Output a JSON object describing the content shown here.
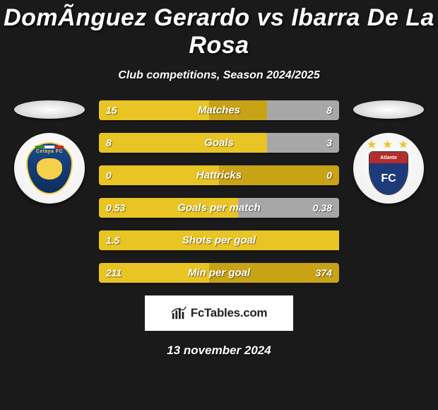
{
  "title": "DomÃ­nguez Gerardo vs Ibarra De La Rosa",
  "subtitle": "Club competitions, Season 2024/2025",
  "date_text": "13 november 2024",
  "attribution": "FcTables.com",
  "colors": {
    "background": "#1a1a1a",
    "bar_base": "#c9a316",
    "bar_left": "#e8c424",
    "bar_right": "#a7a7a7",
    "text": "#ffffff"
  },
  "left_club": {
    "name": "Celaya FC",
    "shield_bg": "#1b4a8f",
    "accent": "#f5d04a"
  },
  "right_club": {
    "name": "Atlante",
    "top_band": "#b52d2d",
    "bot_band": "#1d3a7a",
    "fc_text": "FC"
  },
  "bars": [
    {
      "label": "Matches",
      "left": "15",
      "right": "8",
      "left_pct": 46,
      "right_pct": 30
    },
    {
      "label": "Goals",
      "left": "8",
      "right": "3",
      "left_pct": 70,
      "right_pct": 30
    },
    {
      "label": "Hattricks",
      "left": "0",
      "right": "0",
      "left_pct": 50,
      "right_pct": 0
    },
    {
      "label": "Goals per match",
      "left": "0.53",
      "right": "0.38",
      "left_pct": 58,
      "right_pct": 42
    },
    {
      "label": "Shots per goal",
      "left": "1.5",
      "right": "",
      "left_pct": 100,
      "right_pct": 0
    },
    {
      "label": "Min per goal",
      "left": "211",
      "right": "374",
      "left_pct": 46,
      "right_pct": 0
    }
  ]
}
